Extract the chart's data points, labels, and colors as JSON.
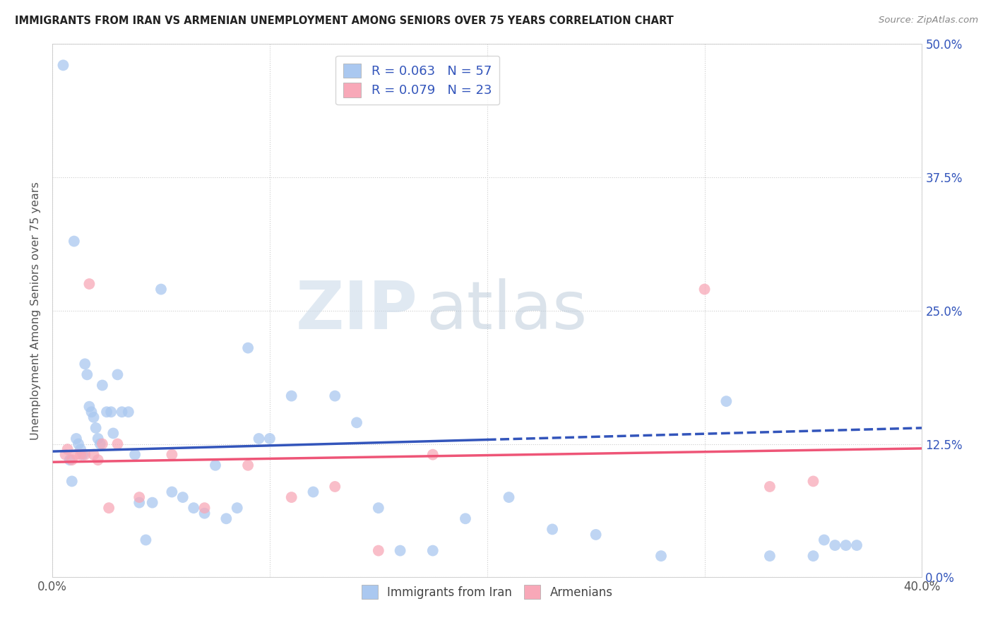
{
  "title": "IMMIGRANTS FROM IRAN VS ARMENIAN UNEMPLOYMENT AMONG SENIORS OVER 75 YEARS CORRELATION CHART",
  "source": "Source: ZipAtlas.com",
  "ylabel": "Unemployment Among Seniors over 75 years",
  "ylabel_ticks": [
    "0.0%",
    "12.5%",
    "25.0%",
    "37.5%",
    "50.0%"
  ],
  "ylabel_tick_vals": [
    0.0,
    0.125,
    0.25,
    0.375,
    0.5
  ],
  "xlim": [
    0.0,
    0.4
  ],
  "ylim": [
    0.0,
    0.5
  ],
  "iran_R": 0.063,
  "iran_N": 57,
  "armenian_R": 0.079,
  "armenian_N": 23,
  "iran_color": "#aac8f0",
  "armenian_color": "#f8a8b8",
  "iran_line_color": "#3355bb",
  "armenian_line_color": "#ee5577",
  "iran_line_solid_end": 0.2,
  "iran_line_intercept": 0.118,
  "iran_line_slope": 0.055,
  "armenian_line_intercept": 0.108,
  "armenian_line_slope": 0.032,
  "iran_scatter_x": [
    0.005,
    0.008,
    0.009,
    0.01,
    0.011,
    0.012,
    0.013,
    0.014,
    0.015,
    0.016,
    0.017,
    0.018,
    0.019,
    0.02,
    0.021,
    0.022,
    0.023,
    0.025,
    0.027,
    0.028,
    0.03,
    0.032,
    0.035,
    0.038,
    0.04,
    0.043,
    0.046,
    0.05,
    0.055,
    0.06,
    0.065,
    0.07,
    0.075,
    0.08,
    0.085,
    0.09,
    0.095,
    0.1,
    0.11,
    0.12,
    0.13,
    0.14,
    0.15,
    0.16,
    0.175,
    0.19,
    0.21,
    0.23,
    0.25,
    0.28,
    0.31,
    0.33,
    0.35,
    0.355,
    0.36,
    0.365,
    0.37
  ],
  "iran_scatter_y": [
    0.48,
    0.11,
    0.09,
    0.315,
    0.13,
    0.125,
    0.12,
    0.115,
    0.2,
    0.19,
    0.16,
    0.155,
    0.15,
    0.14,
    0.13,
    0.125,
    0.18,
    0.155,
    0.155,
    0.135,
    0.19,
    0.155,
    0.155,
    0.115,
    0.07,
    0.035,
    0.07,
    0.27,
    0.08,
    0.075,
    0.065,
    0.06,
    0.105,
    0.055,
    0.065,
    0.215,
    0.13,
    0.13,
    0.17,
    0.08,
    0.17,
    0.145,
    0.065,
    0.025,
    0.025,
    0.055,
    0.075,
    0.045,
    0.04,
    0.02,
    0.165,
    0.02,
    0.02,
    0.035,
    0.03,
    0.03,
    0.03
  ],
  "armenian_scatter_x": [
    0.006,
    0.007,
    0.009,
    0.011,
    0.013,
    0.015,
    0.017,
    0.019,
    0.021,
    0.023,
    0.026,
    0.03,
    0.04,
    0.055,
    0.07,
    0.09,
    0.11,
    0.13,
    0.15,
    0.175,
    0.3,
    0.33,
    0.35
  ],
  "armenian_scatter_y": [
    0.115,
    0.12,
    0.11,
    0.115,
    0.115,
    0.115,
    0.275,
    0.115,
    0.11,
    0.125,
    0.065,
    0.125,
    0.075,
    0.115,
    0.065,
    0.105,
    0.075,
    0.085,
    0.025,
    0.115,
    0.27,
    0.085,
    0.09
  ],
  "watermark_zip": "ZIP",
  "watermark_atlas": "atlas",
  "background_color": "#ffffff",
  "grid_color": "#cccccc"
}
